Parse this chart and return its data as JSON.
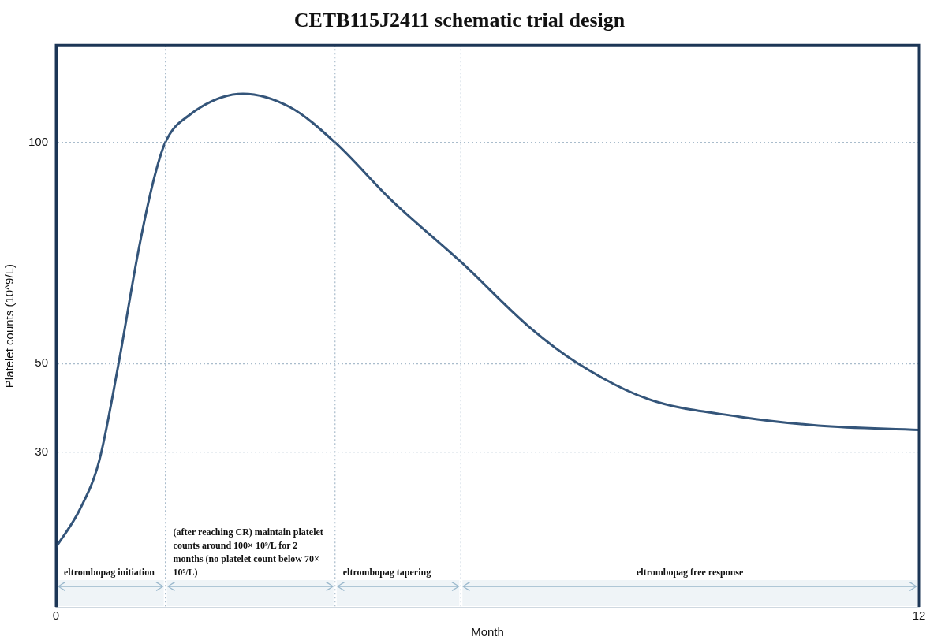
{
  "chart_data": {
    "type": "line",
    "title": "CETB115J2411 schematic trial design",
    "xlabel": "Month",
    "ylabel": "Platelet counts (10^9/L)",
    "x": [
      0,
      0.33,
      0.6,
      0.87,
      1.14,
      1.35,
      1.52,
      1.84,
      2.6,
      3.25,
      3.88,
      4.66,
      5.63,
      6.6,
      7.26,
      8.23,
      9.5,
      10.6,
      12
    ],
    "series": [
      {
        "color": "#34557a",
        "values": [
          8.5,
          17,
          28,
          50,
          75,
          91,
          100,
          106,
          111,
          108,
          100,
          87,
          73,
          58,
          50,
          42,
          38,
          36,
          35
        ]
      }
    ],
    "xlim": [
      0,
      12
    ],
    "xticks": [
      0,
      12
    ],
    "ylim": [
      -5,
      122
    ],
    "yticks": [
      30,
      50,
      100
    ],
    "grid": "y",
    "legend": false,
    "marker": "none",
    "line_style": "solid",
    "ref_lines": [
      {
        "axis": "x",
        "value": 1.52,
        "line_style": "dotted",
        "color": "#a9bccc"
      },
      {
        "axis": "x",
        "value": 3.88,
        "line_style": "dotted",
        "color": "#a9bccc"
      },
      {
        "axis": "x",
        "value": 5.63,
        "line_style": "dotted",
        "color": "#a9bccc"
      }
    ],
    "bands": [
      {
        "axis": "x",
        "from": 0,
        "to": 1.52,
        "label": "eltrombopag initiation",
        "color": "#9ab8cc"
      },
      {
        "axis": "x",
        "from": 1.52,
        "to": 3.88,
        "label": "(after reaching CR) maintain platelet counts around 100× 10⁹/L for 2 months (no platelet count below 70× 10⁹/L)",
        "color": "#9ab8cc"
      },
      {
        "axis": "x",
        "from": 3.88,
        "to": 5.63,
        "label": "eltrombopag tapering",
        "color": "#9ab8cc"
      },
      {
        "axis": "x",
        "from": 5.63,
        "to": 12,
        "label": "eltrombopag free response",
        "color": "#9ab8cc"
      }
    ]
  }
}
